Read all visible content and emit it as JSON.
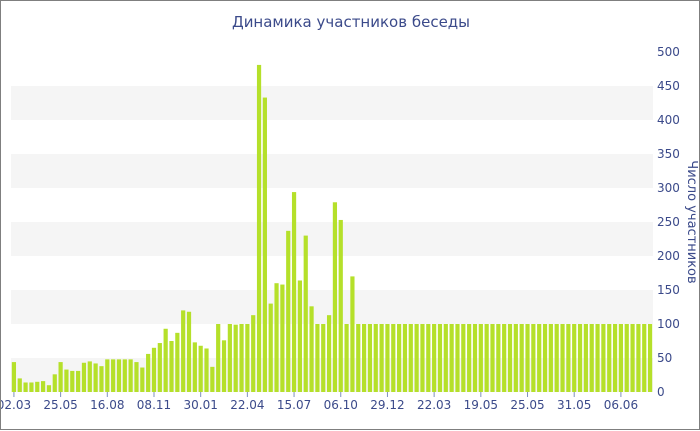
{
  "chart_data": {
    "type": "bar",
    "title": "Динамика участников беседы",
    "xlabel": "",
    "ylabel": "Число участников",
    "ylim": [
      0,
      500
    ],
    "y_ticks": [
      0,
      50,
      100,
      150,
      200,
      250,
      300,
      350,
      400,
      450,
      500
    ],
    "y_axis_side": "right",
    "grid": true,
    "bar_color": "#b5e02a",
    "band_color": "#f5f5f5",
    "x_tick_labels": [
      {
        "index": 0,
        "label": "02.03"
      },
      {
        "index": 8,
        "label": "25.05"
      },
      {
        "index": 16,
        "label": "16.08"
      },
      {
        "index": 24,
        "label": "08.11"
      },
      {
        "index": 32,
        "label": "30.01"
      },
      {
        "index": 40,
        "label": "22.04"
      },
      {
        "index": 48,
        "label": "15.07"
      },
      {
        "index": 56,
        "label": "06.10"
      },
      {
        "index": 64,
        "label": "29.12"
      },
      {
        "index": 72,
        "label": "22.03"
      },
      {
        "index": 80,
        "label": "19.05"
      },
      {
        "index": 88,
        "label": "25.05"
      },
      {
        "index": 96,
        "label": "31.05"
      },
      {
        "index": 104,
        "label": "06.06"
      }
    ],
    "values": [
      44,
      20,
      14,
      14,
      15,
      16,
      10,
      26,
      44,
      33,
      31,
      31,
      43,
      45,
      42,
      38,
      48,
      48,
      48,
      48,
      48,
      44,
      36,
      56,
      65,
      72,
      93,
      75,
      87,
      120,
      118,
      73,
      68,
      64,
      37,
      100,
      76,
      100,
      99,
      100,
      100,
      113,
      481,
      433,
      130,
      160,
      158,
      237,
      294,
      164,
      230,
      126,
      100,
      100,
      113,
      279,
      253,
      100,
      170,
      100,
      100,
      100,
      100,
      100,
      100,
      100,
      100,
      100,
      100,
      100,
      100,
      100,
      100,
      100,
      100,
      100,
      100,
      100,
      100,
      100,
      100,
      100,
      100,
      100,
      100,
      100,
      100,
      100,
      100,
      100,
      100,
      100,
      100,
      100,
      100,
      100,
      100,
      100,
      100,
      100,
      100,
      100,
      100,
      100,
      100,
      100,
      100,
      100,
      100,
      100
    ]
  }
}
